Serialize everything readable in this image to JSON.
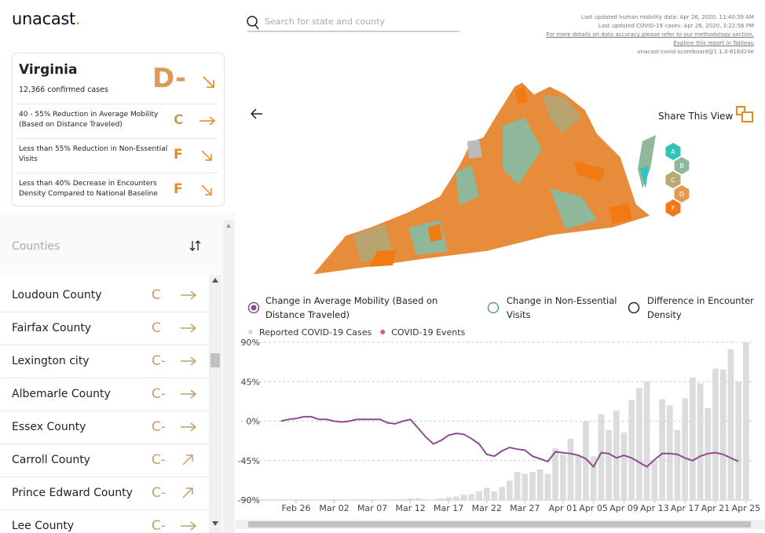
{
  "header": {
    "logo": "unacast",
    "logo_dot": ".",
    "search_placeholder": "Search for state and county",
    "updates": [
      "Last updated human mobility data: Apr 26, 2020, 11:40:39 AM",
      "Last updated COVID-19 cases: Apr 26, 2020, 3:22:56 PM",
      "For more details on data accuracy please refer to our methodology section.",
      "Explore this report in Tableau",
      "unacast-covid-scoreboard@1.1.0-616d24e"
    ]
  },
  "state_card": {
    "name": "Virginia",
    "cases": "12,366 confirmed cases",
    "grade": "D-",
    "metrics": [
      {
        "label": "40 - 55% Reduction in Average Mobility (Based on Distance Traveled)",
        "grade": "C"
      },
      {
        "label": "Less than 55% Reduction in Non-Essential Visits",
        "grade": "F"
      },
      {
        "label": "Less than 40% Decrease in Encounters Density Compared to National Baseline",
        "grade": "F"
      }
    ]
  },
  "counties": {
    "title": "Counties",
    "items": [
      {
        "name": "Loudoun County",
        "grade": "C"
      },
      {
        "name": "Fairfax County",
        "grade": "C"
      },
      {
        "name": "Lexington city",
        "grade": "C-"
      },
      {
        "name": "Albemarle County",
        "grade": "C-"
      },
      {
        "name": "Essex County",
        "grade": "C-"
      },
      {
        "name": "Carroll County",
        "grade": "C-"
      },
      {
        "name": "Prince Edward County",
        "grade": "C-"
      },
      {
        "name": "Lee County",
        "grade": "C-"
      }
    ]
  },
  "map": {
    "share": "Share This View",
    "grades": [
      "A",
      "B",
      "C",
      "D",
      "F"
    ]
  },
  "metric_options": [
    "Change in Non-Essential Visits",
    "Difference in Encounter Density"
  ],
  "chart_data": {
    "type": "combo",
    "categories": [
      null,
      null,
      "Feb 26",
      null,
      null,
      null,
      null,
      "Mar 02",
      null,
      null,
      null,
      null,
      "Mar 07",
      null,
      null,
      null,
      null,
      "Mar 12",
      null,
      null,
      null,
      null,
      "Mar 17",
      null,
      null,
      null,
      null,
      "Mar 22",
      null,
      null,
      null,
      null,
      "Mar 27",
      null,
      null,
      null,
      null,
      "Apr 01",
      null,
      null,
      null,
      "Apr 05",
      null,
      null,
      null,
      "Apr 09",
      null,
      null,
      null,
      "Apr 13",
      null,
      null,
      null,
      "Apr 17",
      null,
      null,
      null,
      "Apr 21",
      null,
      null,
      null,
      "Apr 25"
    ],
    "series": [
      {
        "name": "Reported COVID-19 Cases",
        "color": "#dcdcdc",
        "type": "bar",
        "values": [
          null,
          null,
          null,
          null,
          null,
          null,
          null,
          null,
          null,
          null,
          null,
          null,
          null,
          null,
          null,
          -89,
          -89,
          -88,
          -88,
          -89,
          -90,
          -88,
          -87,
          -86,
          -84,
          -83,
          -80,
          -76,
          -80,
          -75,
          -68,
          -58,
          -60,
          -58,
          -55,
          -60,
          -31,
          -38,
          -20,
          -40,
          0,
          -40,
          8,
          -10,
          12,
          -13,
          24,
          38,
          45,
          -45,
          25,
          18,
          -10,
          26,
          50,
          43,
          15,
          60,
          59,
          82,
          45,
          90
        ]
      },
      {
        "name": "COVID-19 Events",
        "color": "#e0587a",
        "type": "scatter",
        "values": [
          null,
          null,
          null,
          null,
          null,
          null,
          null,
          null,
          null,
          null,
          null,
          null,
          null,
          null,
          null,
          null,
          null,
          null,
          null,
          null,
          null,
          null,
          null,
          null,
          null,
          null,
          null,
          null,
          null,
          null,
          null,
          null,
          null,
          null,
          null,
          null,
          null,
          null,
          null,
          null,
          null,
          null,
          null,
          null,
          null,
          null,
          null,
          null,
          null,
          null,
          null,
          null,
          null,
          null,
          null,
          null,
          null,
          null,
          null,
          null,
          null,
          null
        ]
      },
      {
        "name": "Change in Average Mobility (Based on Distance Traveled)",
        "color": "#8e4a91",
        "type": "line",
        "values": [
          0,
          2,
          3,
          5,
          5,
          2,
          2,
          0,
          -1,
          0,
          2,
          2,
          2,
          2,
          -2,
          -3,
          0,
          2,
          -8,
          -18,
          -26,
          -22,
          -16,
          -14,
          -15,
          -20,
          -26,
          -38,
          -40,
          -34,
          -30,
          -32,
          -33,
          -40,
          -43,
          -46,
          -35,
          -36,
          -37,
          -39,
          -43,
          -52,
          -36,
          -37,
          -42,
          -39,
          -42,
          -47,
          -52,
          -44,
          -37,
          -37,
          -38,
          -42,
          -45,
          -40,
          -37,
          -36,
          -38,
          -42,
          -46,
          null
        ]
      }
    ],
    "ylim": [
      -90,
      90
    ],
    "yticks": [
      {
        "value": 90,
        "label": "90%"
      },
      {
        "value": 45,
        "label": "45%"
      },
      {
        "value": 0,
        "label": "0%"
      },
      {
        "value": -45,
        "label": "-45%"
      },
      {
        "value": -90,
        "label": "-90%"
      }
    ],
    "grid": true
  }
}
